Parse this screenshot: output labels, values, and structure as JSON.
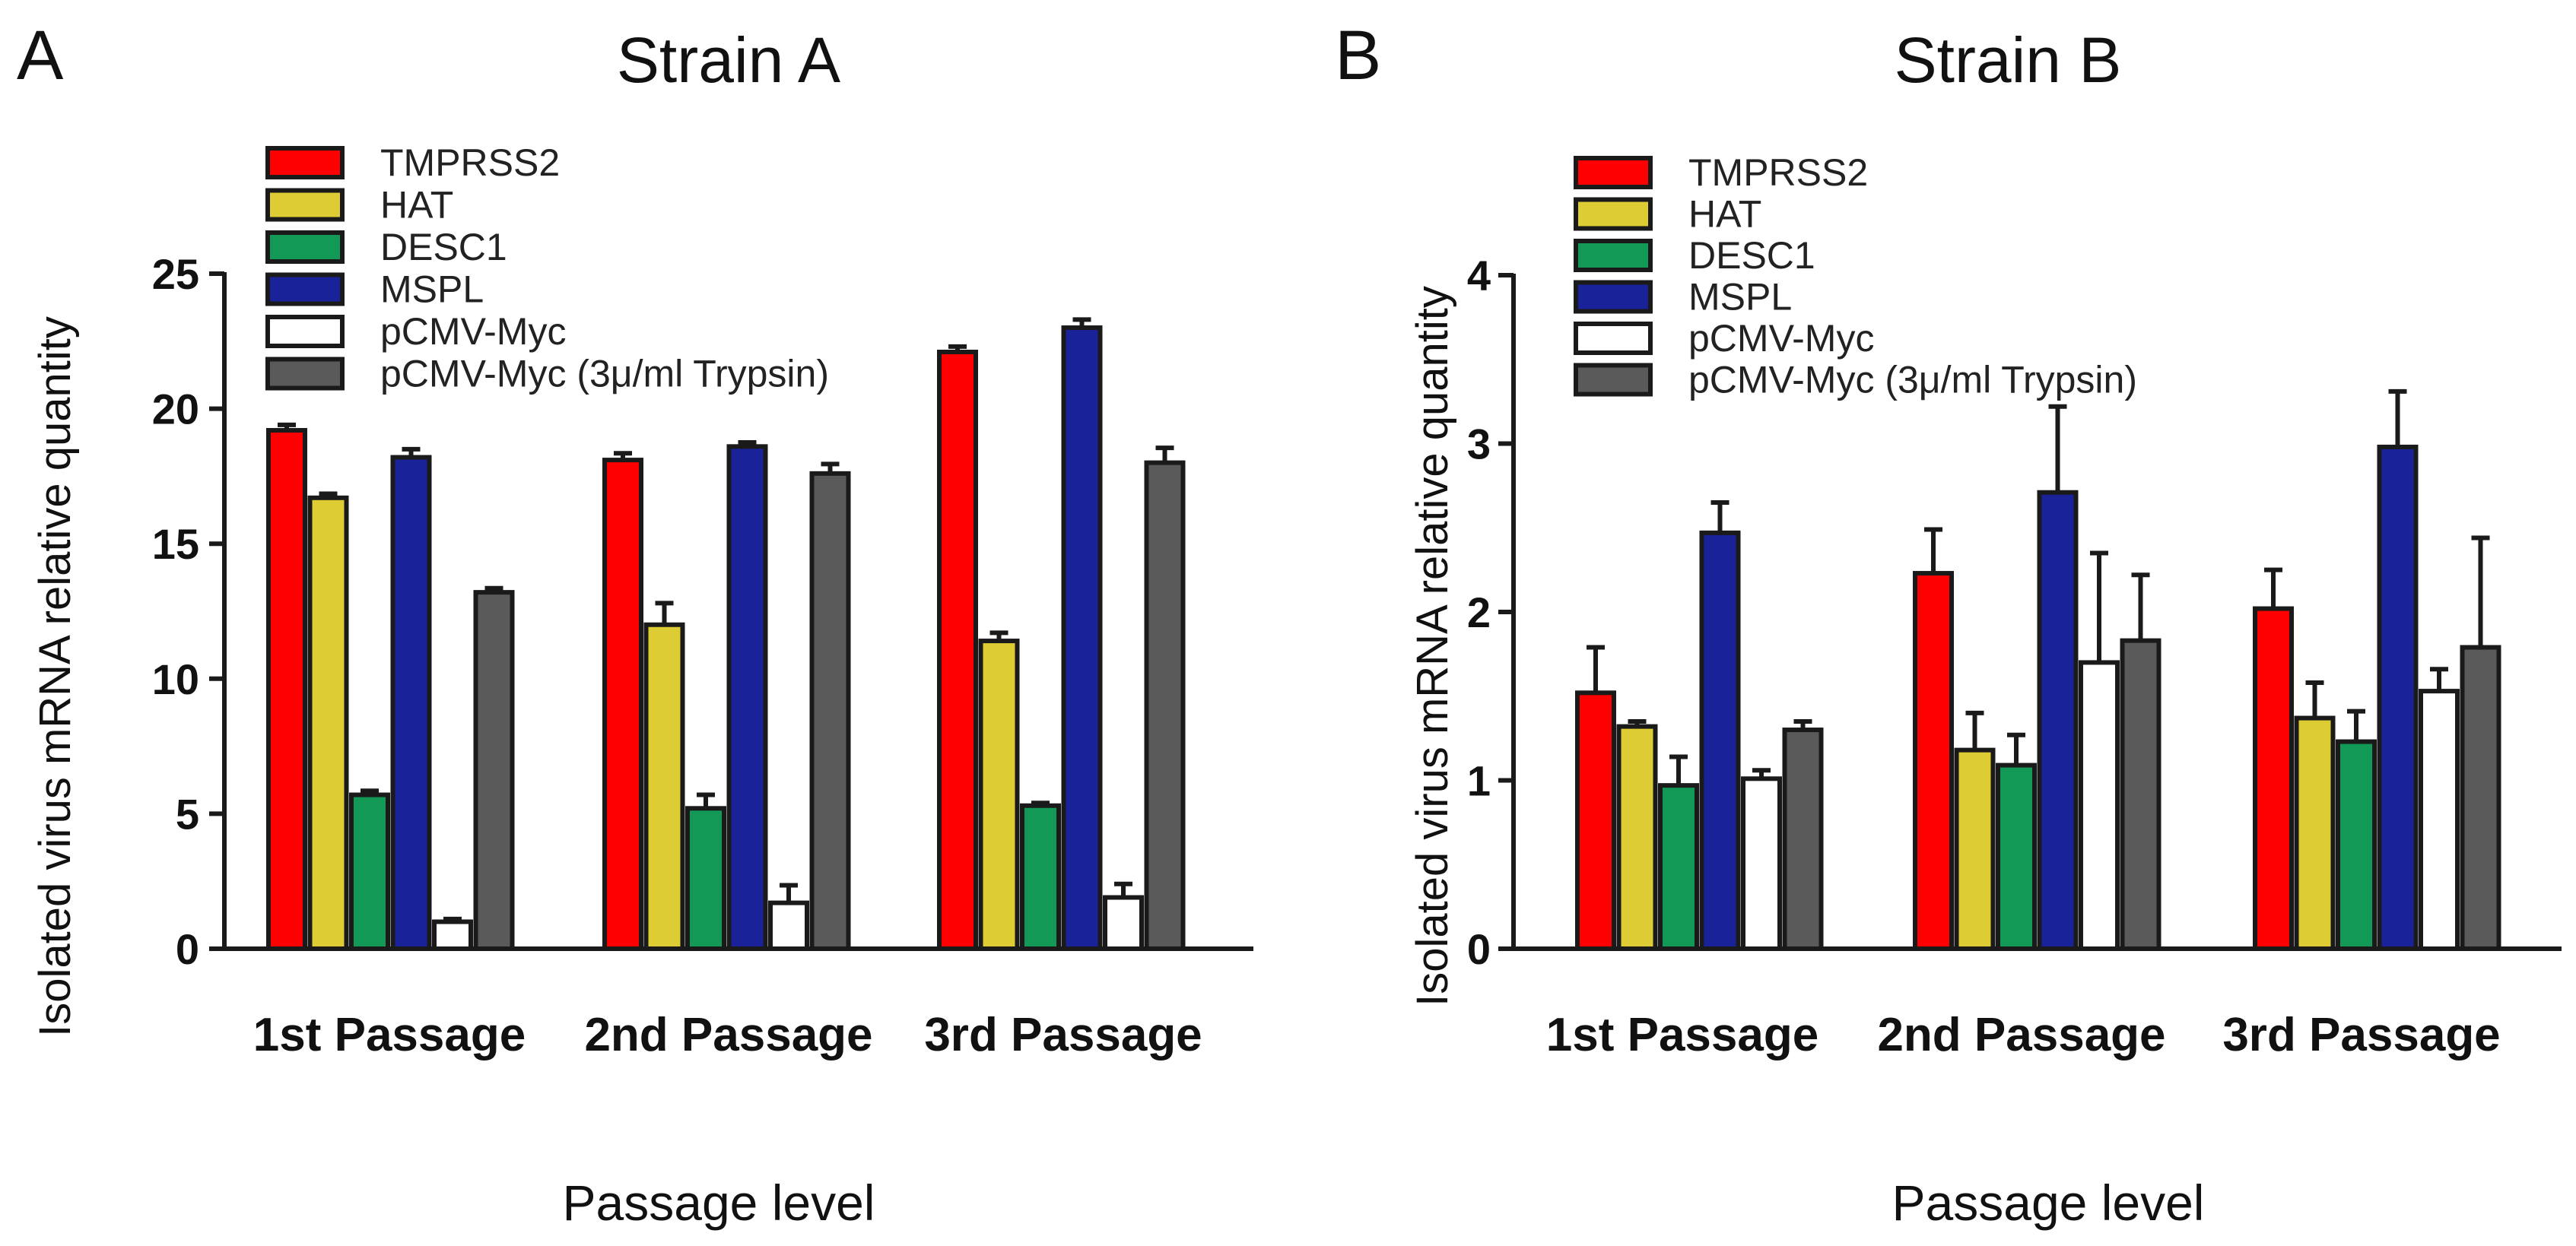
{
  "figure": {
    "panels": [
      {
        "letter": "A",
        "title": "Strain A"
      },
      {
        "letter": "B",
        "title": "Strain B"
      }
    ]
  },
  "colors": {
    "TMPRSS2": "#ff0000",
    "HAT": "#ddcc33",
    "DESC1": "#119955",
    "MSPL": "#1a2299",
    "pCMV-Myc": "#ffffff",
    "pCMV-Myc (3μ/ml Trypsin)": "#5a5a5a",
    "outline": "#1a1a1a"
  },
  "chart_data": [
    {
      "type": "bar",
      "title": "Strain A",
      "xlabel": "Passage level",
      "ylabel": "Isolated virus mRNA relative quantity",
      "categories": [
        "1st Passage",
        "2nd Passage",
        "3rd Passage"
      ],
      "ylim": [
        0,
        25
      ],
      "yticks": [
        0,
        5,
        10,
        15,
        20,
        25
      ],
      "grid": false,
      "legend_position": "top-left",
      "series": [
        {
          "name": "TMPRSS2",
          "values": [
            19.2,
            18.1,
            22.1
          ],
          "errors": [
            0.2,
            0.25,
            0.2
          ]
        },
        {
          "name": "HAT",
          "values": [
            16.7,
            12.0,
            11.4
          ],
          "errors": [
            0.15,
            0.8,
            0.3
          ]
        },
        {
          "name": "DESC1",
          "values": [
            5.7,
            5.2,
            5.3
          ],
          "errors": [
            0.15,
            0.5,
            0.1
          ]
        },
        {
          "name": "MSPL",
          "values": [
            18.2,
            18.6,
            23.0
          ],
          "errors": [
            0.3,
            0.15,
            0.3
          ]
        },
        {
          "name": "pCMV-Myc",
          "values": [
            1.0,
            1.7,
            1.9
          ],
          "errors": [
            0.1,
            0.65,
            0.5
          ]
        },
        {
          "name": "pCMV-Myc (3μ/ml Trypsin)",
          "values": [
            13.2,
            17.6,
            18.0
          ],
          "errors": [
            0.15,
            0.35,
            0.55
          ]
        }
      ]
    },
    {
      "type": "bar",
      "title": "Strain B",
      "xlabel": "Passage level",
      "ylabel": "Isolated virus mRNA relative quantity",
      "categories": [
        "1st Passage",
        "2nd Passage",
        "3rd Passage"
      ],
      "ylim": [
        0,
        4
      ],
      "yticks": [
        0,
        1,
        2,
        3,
        4
      ],
      "grid": false,
      "legend_position": "top-left",
      "series": [
        {
          "name": "TMPRSS2",
          "values": [
            1.52,
            2.23,
            2.02
          ],
          "errors": [
            0.27,
            0.26,
            0.23
          ]
        },
        {
          "name": "HAT",
          "values": [
            1.32,
            1.18,
            1.37
          ],
          "errors": [
            0.03,
            0.22,
            0.21
          ]
        },
        {
          "name": "DESC1",
          "values": [
            0.97,
            1.09,
            1.23
          ],
          "errors": [
            0.17,
            0.18,
            0.18
          ]
        },
        {
          "name": "MSPL",
          "values": [
            2.47,
            2.71,
            2.98
          ],
          "errors": [
            0.18,
            0.51,
            0.33
          ]
        },
        {
          "name": "pCMV-Myc",
          "values": [
            1.01,
            1.7,
            1.53
          ],
          "errors": [
            0.05,
            0.65,
            0.13
          ]
        },
        {
          "name": "pCMV-Myc (3μ/ml Trypsin)",
          "values": [
            1.3,
            1.83,
            1.79
          ],
          "errors": [
            0.05,
            0.39,
            0.65
          ]
        }
      ]
    }
  ]
}
